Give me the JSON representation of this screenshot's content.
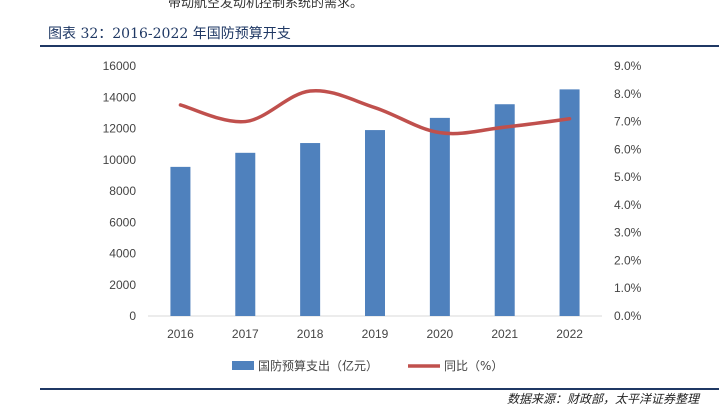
{
  "header": {
    "cut_text": "带动航空发动机控制系统的需求。",
    "figure_title": "图表 32：2016-2022 年国防预算开支"
  },
  "footer": {
    "source": "数据来源：财政部，太平洋证券整理"
  },
  "colors": {
    "bar": "#4f81bd",
    "line": "#c0504d",
    "title": "#1f3864"
  },
  "chart_data": {
    "type": "bar",
    "title": "2016-2022 年国防预算开支",
    "categories": [
      "2016",
      "2017",
      "2018",
      "2019",
      "2020",
      "2021",
      "2022"
    ],
    "series": [
      {
        "name": "国防预算支出（亿元）",
        "type": "bar",
        "axis": "left",
        "values": [
          9544,
          10444,
          11069,
          11899,
          12680,
          13553,
          14504
        ]
      },
      {
        "name": "同比（%）",
        "type": "line",
        "axis": "right",
        "values": [
          7.6,
          7.0,
          8.1,
          7.5,
          6.6,
          6.8,
          7.1
        ]
      }
    ],
    "ylim_left": [
      0,
      16000
    ],
    "yticks_left": [
      "0",
      "2000",
      "4000",
      "6000",
      "8000",
      "10000",
      "12000",
      "14000",
      "16000"
    ],
    "ylim_right": [
      0,
      9
    ],
    "yticks_right": [
      "0.0%",
      "1.0%",
      "2.0%",
      "3.0%",
      "4.0%",
      "5.0%",
      "6.0%",
      "7.0%",
      "8.0%",
      "9.0%"
    ],
    "grid": false,
    "legend_position": "bottom"
  }
}
